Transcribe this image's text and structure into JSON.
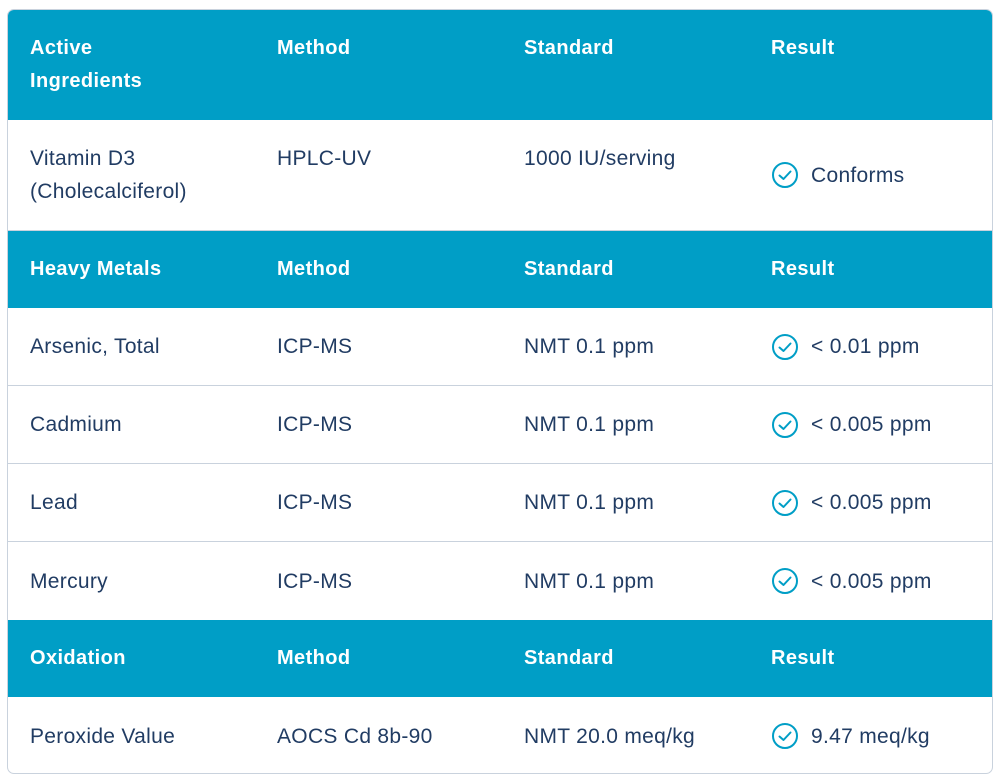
{
  "accent_color": "#009ec6",
  "text_color": "#213c63",
  "sections": [
    {
      "header": [
        "Active\nIngredients",
        "Method",
        "Standard",
        "Result"
      ],
      "rows": [
        {
          "name": "Vitamin D3\n(Cholecalciferol)",
          "method": "HPLC-UV",
          "standard": "1000 IU/serving",
          "result": "Conforms",
          "icon": "check-circle-icon"
        }
      ]
    },
    {
      "header": [
        "Heavy Metals",
        "Method",
        "Standard",
        "Result"
      ],
      "rows": [
        {
          "name": "Arsenic, Total",
          "method": "ICP-MS",
          "standard": "NMT 0.1 ppm",
          "result": "< 0.01 ppm",
          "icon": "check-circle-icon"
        },
        {
          "name": "Cadmium",
          "method": "ICP-MS",
          "standard": "NMT 0.1 ppm",
          "result": "< 0.005 ppm",
          "icon": "check-circle-icon"
        },
        {
          "name": "Lead",
          "method": "ICP-MS",
          "standard": "NMT 0.1 ppm",
          "result": "< 0.005 ppm",
          "icon": "check-circle-icon"
        },
        {
          "name": "Mercury",
          "method": "ICP-MS",
          "standard": "NMT 0.1 ppm",
          "result": "< 0.005 ppm",
          "icon": "check-circle-icon"
        }
      ]
    },
    {
      "header": [
        "Oxidation",
        "Method",
        "Standard",
        "Result"
      ],
      "rows": [
        {
          "name": "Peroxide Value",
          "method": "AOCS Cd 8b-90",
          "standard": "NMT 20.0 meq/kg",
          "result": "9.47 meq/kg",
          "icon": "check-circle-icon"
        }
      ]
    }
  ]
}
